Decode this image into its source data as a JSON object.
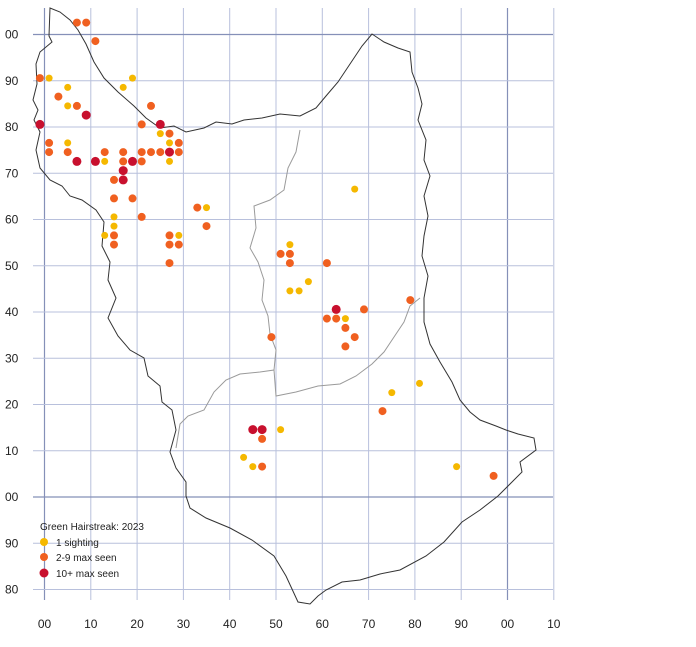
{
  "map": {
    "x_axis_labels": [
      "00",
      "10",
      "20",
      "30",
      "40",
      "50",
      "60",
      "70",
      "80",
      "90",
      "00",
      "10"
    ],
    "y_axis_labels": [
      "00",
      "90",
      "80",
      "70",
      "60",
      "50",
      "40",
      "30",
      "20",
      "10",
      "00",
      "90",
      "80"
    ],
    "colors": {
      "grid": "#b8c0dc",
      "major_grid": "#8590b8",
      "boundary": "#333333",
      "inner_boundary": "#9a9a9a",
      "one_sighting": "#f5b800",
      "two_to_nine": "#f06020",
      "ten_plus": "#c8102e"
    }
  },
  "legend": {
    "title": "Green Hairstreak:  2023",
    "items": [
      {
        "label": "1 sighting",
        "category": "one",
        "color": "#f5b800"
      },
      {
        "label": "2-9 max seen",
        "category": "mid",
        "color": "#f06020"
      },
      {
        "label": "10+ max seen",
        "category": "high",
        "color": "#c8102e"
      }
    ]
  },
  "chart_data": {
    "type": "scatter",
    "x_unit": "km grid",
    "y_unit": "km grid",
    "categories": [
      "1 sighting",
      "2-9 max seen",
      "10+ max seen"
    ],
    "points": [
      {
        "x": -1,
        "y": 91,
        "cat": "mid"
      },
      {
        "x": 1,
        "y": 91,
        "cat": "one"
      },
      {
        "x": 7,
        "y": 103,
        "cat": "mid"
      },
      {
        "x": 9,
        "y": 103,
        "cat": "mid"
      },
      {
        "x": 11,
        "y": 99,
        "cat": "mid"
      },
      {
        "x": 5,
        "y": 89,
        "cat": "one"
      },
      {
        "x": 3,
        "y": 87,
        "cat": "mid"
      },
      {
        "x": 5,
        "y": 85,
        "cat": "one"
      },
      {
        "x": 7,
        "y": 85,
        "cat": "mid"
      },
      {
        "x": 9,
        "y": 83,
        "cat": "high"
      },
      {
        "x": -1,
        "y": 81,
        "cat": "high"
      },
      {
        "x": 1,
        "y": 77,
        "cat": "mid"
      },
      {
        "x": 1,
        "y": 75,
        "cat": "mid"
      },
      {
        "x": 5,
        "y": 77,
        "cat": "one"
      },
      {
        "x": 5,
        "y": 75,
        "cat": "mid"
      },
      {
        "x": 7,
        "y": 73,
        "cat": "high"
      },
      {
        "x": 11,
        "y": 73,
        "cat": "high"
      },
      {
        "x": 13,
        "y": 73,
        "cat": "one"
      },
      {
        "x": 13,
        "y": 75,
        "cat": "mid"
      },
      {
        "x": 17,
        "y": 89,
        "cat": "one"
      },
      {
        "x": 19,
        "y": 91,
        "cat": "one"
      },
      {
        "x": 23,
        "y": 85,
        "cat": "mid"
      },
      {
        "x": 21,
        "y": 81,
        "cat": "mid"
      },
      {
        "x": 25,
        "y": 81,
        "cat": "high"
      },
      {
        "x": 25,
        "y": 79,
        "cat": "one"
      },
      {
        "x": 27,
        "y": 79,
        "cat": "mid"
      },
      {
        "x": 27,
        "y": 77,
        "cat": "one"
      },
      {
        "x": 29,
        "y": 77,
        "cat": "mid"
      },
      {
        "x": 17,
        "y": 75,
        "cat": "mid"
      },
      {
        "x": 21,
        "y": 75,
        "cat": "mid"
      },
      {
        "x": 23,
        "y": 75,
        "cat": "mid"
      },
      {
        "x": 25,
        "y": 75,
        "cat": "mid"
      },
      {
        "x": 27,
        "y": 75,
        "cat": "high"
      },
      {
        "x": 29,
        "y": 75,
        "cat": "mid"
      },
      {
        "x": 17,
        "y": 73,
        "cat": "mid"
      },
      {
        "x": 19,
        "y": 73,
        "cat": "high"
      },
      {
        "x": 21,
        "y": 73,
        "cat": "mid"
      },
      {
        "x": 27,
        "y": 73,
        "cat": "one"
      },
      {
        "x": 17,
        "y": 71,
        "cat": "high"
      },
      {
        "x": 17,
        "y": 69,
        "cat": "high"
      },
      {
        "x": 15,
        "y": 69,
        "cat": "mid"
      },
      {
        "x": 15,
        "y": 65,
        "cat": "mid"
      },
      {
        "x": 19,
        "y": 65,
        "cat": "mid"
      },
      {
        "x": 15,
        "y": 61,
        "cat": "one"
      },
      {
        "x": 15,
        "y": 59,
        "cat": "one"
      },
      {
        "x": 21,
        "y": 61,
        "cat": "mid"
      },
      {
        "x": 13,
        "y": 57,
        "cat": "one"
      },
      {
        "x": 15,
        "y": 57,
        "cat": "mid"
      },
      {
        "x": 15,
        "y": 55,
        "cat": "mid"
      },
      {
        "x": 27,
        "y": 57,
        "cat": "mid"
      },
      {
        "x": 29,
        "y": 57,
        "cat": "one"
      },
      {
        "x": 27,
        "y": 55,
        "cat": "mid"
      },
      {
        "x": 29,
        "y": 55,
        "cat": "mid"
      },
      {
        "x": 27,
        "y": 51,
        "cat": "mid"
      },
      {
        "x": 33,
        "y": 63,
        "cat": "mid"
      },
      {
        "x": 35,
        "y": 63,
        "cat": "one"
      },
      {
        "x": 35,
        "y": 59,
        "cat": "mid"
      },
      {
        "x": 67,
        "y": 67,
        "cat": "one"
      },
      {
        "x": 53,
        "y": 55,
        "cat": "one"
      },
      {
        "x": 51,
        "y": 53,
        "cat": "mid"
      },
      {
        "x": 53,
        "y": 53,
        "cat": "mid"
      },
      {
        "x": 53,
        "y": 51,
        "cat": "mid"
      },
      {
        "x": 61,
        "y": 51,
        "cat": "mid"
      },
      {
        "x": 57,
        "y": 47,
        "cat": "one"
      },
      {
        "x": 53,
        "y": 45,
        "cat": "one"
      },
      {
        "x": 55,
        "y": 45,
        "cat": "one"
      },
      {
        "x": 63,
        "y": 41,
        "cat": "high"
      },
      {
        "x": 61,
        "y": 39,
        "cat": "mid"
      },
      {
        "x": 63,
        "y": 39,
        "cat": "mid"
      },
      {
        "x": 65,
        "y": 39,
        "cat": "one"
      },
      {
        "x": 69,
        "y": 41,
        "cat": "mid"
      },
      {
        "x": 79,
        "y": 43,
        "cat": "mid"
      },
      {
        "x": 65,
        "y": 37,
        "cat": "mid"
      },
      {
        "x": 67,
        "y": 35,
        "cat": "mid"
      },
      {
        "x": 65,
        "y": 33,
        "cat": "mid"
      },
      {
        "x": 49,
        "y": 35,
        "cat": "mid"
      },
      {
        "x": 75,
        "y": 23,
        "cat": "one"
      },
      {
        "x": 81,
        "y": 25,
        "cat": "one"
      },
      {
        "x": 73,
        "y": 19,
        "cat": "mid"
      },
      {
        "x": 45,
        "y": 15,
        "cat": "high"
      },
      {
        "x": 47,
        "y": 15,
        "cat": "high"
      },
      {
        "x": 47,
        "y": 13,
        "cat": "mid"
      },
      {
        "x": 51,
        "y": 15,
        "cat": "one"
      },
      {
        "x": 43,
        "y": 9,
        "cat": "one"
      },
      {
        "x": 45,
        "y": 7,
        "cat": "one"
      },
      {
        "x": 47,
        "y": 7,
        "cat": "mid"
      },
      {
        "x": 89,
        "y": 7,
        "cat": "one"
      },
      {
        "x": 97,
        "y": 5,
        "cat": "mid"
      }
    ]
  }
}
